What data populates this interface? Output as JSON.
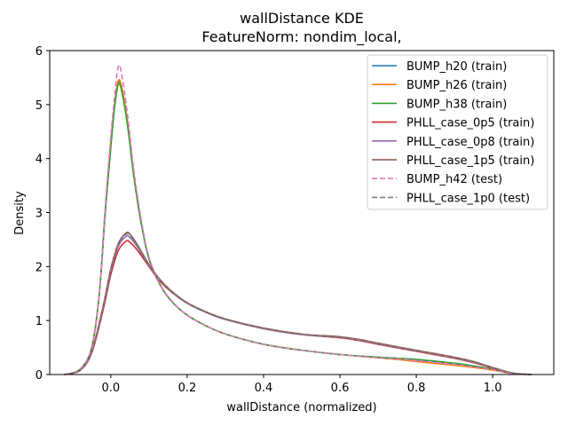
{
  "chart_data": {
    "type": "line",
    "title": "wallDistance KDE",
    "subtitle": "FeatureNorm: nondim_local,",
    "xlabel": "wallDistance (normalized)",
    "ylabel": "Density",
    "xlim": [
      -0.16,
      1.16
    ],
    "ylim": [
      0,
      6
    ],
    "xticks": [
      0.0,
      0.2,
      0.4,
      0.6,
      0.8,
      1.0
    ],
    "xtick_labels": [
      "0.0",
      "0.2",
      "0.4",
      "0.6",
      "0.8",
      "1.0"
    ],
    "yticks": [
      0,
      1,
      2,
      3,
      4,
      5,
      6
    ],
    "ytick_labels": [
      "0",
      "1",
      "2",
      "3",
      "4",
      "5",
      "6"
    ],
    "grid": false,
    "legend_position": "top-right",
    "series": [
      {
        "name": "BUMP_h20 (train)",
        "color": "#1f77b4",
        "dash": false,
        "x": [
          -0.12,
          -0.08,
          -0.05,
          -0.03,
          -0.015,
          0.0,
          0.01,
          0.02,
          0.03,
          0.045,
          0.06,
          0.08,
          0.1,
          0.13,
          0.16,
          0.2,
          0.25,
          0.3,
          0.4,
          0.5,
          0.6,
          0.7,
          0.75,
          0.8,
          0.9,
          0.95,
          1.0,
          1.05,
          1.1
        ],
        "y": [
          0.0,
          0.1,
          0.5,
          1.5,
          3.0,
          4.3,
          5.0,
          5.42,
          5.25,
          4.6,
          3.7,
          2.8,
          2.15,
          1.65,
          1.35,
          1.1,
          0.9,
          0.75,
          0.56,
          0.45,
          0.37,
          0.32,
          0.3,
          0.27,
          0.2,
          0.15,
          0.09,
          0.02,
          0.0
        ]
      },
      {
        "name": "BUMP_h26 (train)",
        "color": "#ff7f0e",
        "dash": false,
        "x": [
          -0.12,
          -0.08,
          -0.05,
          -0.03,
          -0.015,
          0.0,
          0.01,
          0.02,
          0.03,
          0.045,
          0.06,
          0.08,
          0.1,
          0.13,
          0.16,
          0.2,
          0.25,
          0.3,
          0.4,
          0.5,
          0.6,
          0.7,
          0.75,
          0.8,
          0.9,
          0.95,
          1.0,
          1.05,
          1.1
        ],
        "y": [
          0.0,
          0.1,
          0.5,
          1.5,
          3.0,
          4.3,
          5.0,
          5.45,
          5.28,
          4.62,
          3.72,
          2.8,
          2.15,
          1.65,
          1.35,
          1.1,
          0.9,
          0.75,
          0.56,
          0.45,
          0.37,
          0.31,
          0.28,
          0.24,
          0.17,
          0.13,
          0.08,
          0.02,
          0.0
        ]
      },
      {
        "name": "BUMP_h38 (train)",
        "color": "#2ca02c",
        "dash": false,
        "x": [
          -0.12,
          -0.08,
          -0.05,
          -0.03,
          -0.015,
          0.0,
          0.01,
          0.02,
          0.03,
          0.045,
          0.06,
          0.08,
          0.1,
          0.13,
          0.16,
          0.2,
          0.25,
          0.3,
          0.4,
          0.5,
          0.6,
          0.7,
          0.75,
          0.8,
          0.9,
          0.95,
          1.0,
          1.05,
          1.1
        ],
        "y": [
          0.0,
          0.1,
          0.5,
          1.5,
          2.95,
          4.2,
          4.95,
          5.38,
          5.2,
          4.55,
          3.68,
          2.78,
          2.14,
          1.65,
          1.35,
          1.1,
          0.9,
          0.75,
          0.56,
          0.45,
          0.37,
          0.32,
          0.3,
          0.28,
          0.21,
          0.16,
          0.1,
          0.02,
          0.0
        ]
      },
      {
        "name": "PHLL_case_0p5 (train)",
        "color": "#d62728",
        "dash": false,
        "x": [
          -0.12,
          -0.08,
          -0.05,
          -0.02,
          0.0,
          0.02,
          0.04,
          0.05,
          0.07,
          0.1,
          0.13,
          0.16,
          0.2,
          0.25,
          0.3,
          0.4,
          0.5,
          0.6,
          0.65,
          0.7,
          0.8,
          0.9,
          0.95,
          1.0,
          1.05,
          1.1
        ],
        "y": [
          0.0,
          0.08,
          0.4,
          1.2,
          1.85,
          2.3,
          2.47,
          2.45,
          2.3,
          2.0,
          1.72,
          1.52,
          1.32,
          1.15,
          1.02,
          0.85,
          0.74,
          0.68,
          0.63,
          0.56,
          0.43,
          0.3,
          0.22,
          0.12,
          0.03,
          0.0
        ]
      },
      {
        "name": "PHLL_case_0p8 (train)",
        "color": "#9467bd",
        "dash": false,
        "x": [
          -0.12,
          -0.08,
          -0.05,
          -0.02,
          0.0,
          0.02,
          0.04,
          0.05,
          0.07,
          0.1,
          0.13,
          0.16,
          0.2,
          0.25,
          0.3,
          0.4,
          0.5,
          0.6,
          0.65,
          0.7,
          0.8,
          0.9,
          0.95,
          1.0,
          1.05,
          1.1
        ],
        "y": [
          0.0,
          0.08,
          0.42,
          1.25,
          1.92,
          2.38,
          2.56,
          2.54,
          2.36,
          2.02,
          1.74,
          1.53,
          1.32,
          1.15,
          1.02,
          0.85,
          0.74,
          0.69,
          0.64,
          0.57,
          0.44,
          0.31,
          0.23,
          0.13,
          0.03,
          0.0
        ]
      },
      {
        "name": "PHLL_case_1p5 (train)",
        "color": "#8c564b",
        "dash": false,
        "x": [
          -0.12,
          -0.08,
          -0.05,
          -0.02,
          0.0,
          0.02,
          0.04,
          0.05,
          0.07,
          0.1,
          0.13,
          0.16,
          0.2,
          0.25,
          0.3,
          0.4,
          0.5,
          0.6,
          0.65,
          0.7,
          0.8,
          0.9,
          0.95,
          1.0,
          1.05,
          1.1
        ],
        "y": [
          0.0,
          0.08,
          0.43,
          1.27,
          1.96,
          2.43,
          2.62,
          2.6,
          2.4,
          2.04,
          1.75,
          1.54,
          1.33,
          1.16,
          1.03,
          0.86,
          0.75,
          0.7,
          0.65,
          0.58,
          0.45,
          0.32,
          0.24,
          0.13,
          0.03,
          0.0
        ]
      },
      {
        "name": "BUMP_h42 (test)",
        "color": "#e377c2",
        "dash": true,
        "x": [
          -0.12,
          -0.08,
          -0.05,
          -0.03,
          -0.015,
          0.0,
          0.01,
          0.02,
          0.03,
          0.045,
          0.06,
          0.08,
          0.1,
          0.13,
          0.16,
          0.2,
          0.25,
          0.3,
          0.4,
          0.5,
          0.6,
          0.7,
          0.75,
          0.8,
          0.9,
          0.95,
          1.0,
          1.05,
          1.1
        ],
        "y": [
          0.0,
          0.1,
          0.5,
          1.5,
          3.05,
          4.4,
          5.15,
          5.72,
          5.5,
          4.75,
          3.8,
          2.85,
          2.17,
          1.66,
          1.36,
          1.1,
          0.9,
          0.75,
          0.56,
          0.45,
          0.37,
          0.31,
          0.29,
          0.26,
          0.19,
          0.14,
          0.09,
          0.02,
          0.0
        ]
      },
      {
        "name": "PHLL_case_1p0 (test)",
        "color": "#7f7f7f",
        "dash": true,
        "x": [
          -0.12,
          -0.08,
          -0.05,
          -0.02,
          0.0,
          0.02,
          0.04,
          0.05,
          0.07,
          0.1,
          0.13,
          0.16,
          0.2,
          0.25,
          0.3,
          0.4,
          0.5,
          0.6,
          0.65,
          0.7,
          0.8,
          0.9,
          0.95,
          1.0,
          1.05,
          1.1
        ],
        "y": [
          0.0,
          0.08,
          0.42,
          1.26,
          1.94,
          2.41,
          2.6,
          2.58,
          2.38,
          2.03,
          1.74,
          1.53,
          1.32,
          1.15,
          1.02,
          0.85,
          0.74,
          0.69,
          0.64,
          0.57,
          0.44,
          0.31,
          0.23,
          0.13,
          0.03,
          0.0
        ]
      }
    ]
  }
}
